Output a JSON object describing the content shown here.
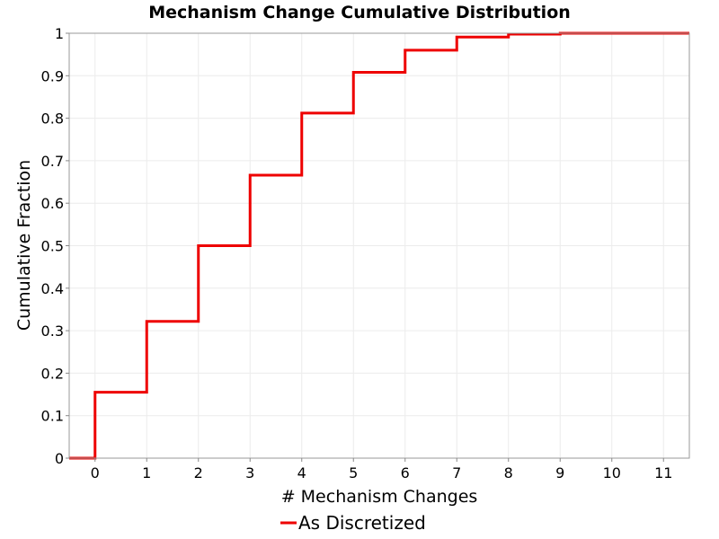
{
  "chart_data": {
    "type": "line",
    "step": true,
    "title": "Mechanism Change Cumulative Distribution",
    "xlabel": "# Mechanism Changes",
    "ylabel": "Cumulative Fraction",
    "xlim": [
      -0.5,
      11.5
    ],
    "ylim": [
      0,
      1
    ],
    "xticks": [
      "0",
      "1",
      "2",
      "3",
      "4",
      "5",
      "6",
      "7",
      "8",
      "9",
      "10",
      "11"
    ],
    "yticks": [
      "0",
      "0.1",
      "0.2",
      "0.3",
      "0.4",
      "0.5",
      "0.6",
      "0.7",
      "0.8",
      "0.9",
      "1"
    ],
    "grid": true,
    "legend_position": "bottom",
    "series": [
      {
        "name": "As Discretized",
        "color": "#ee0000",
        "x": [
          -0.5,
          0,
          1,
          2,
          3,
          4,
          5,
          6,
          7,
          8,
          9,
          11.5
        ],
        "y": [
          0,
          0.155,
          0.322,
          0.5,
          0.666,
          0.812,
          0.908,
          0.96,
          0.991,
          0.998,
          1.0,
          1.0
        ]
      }
    ]
  }
}
